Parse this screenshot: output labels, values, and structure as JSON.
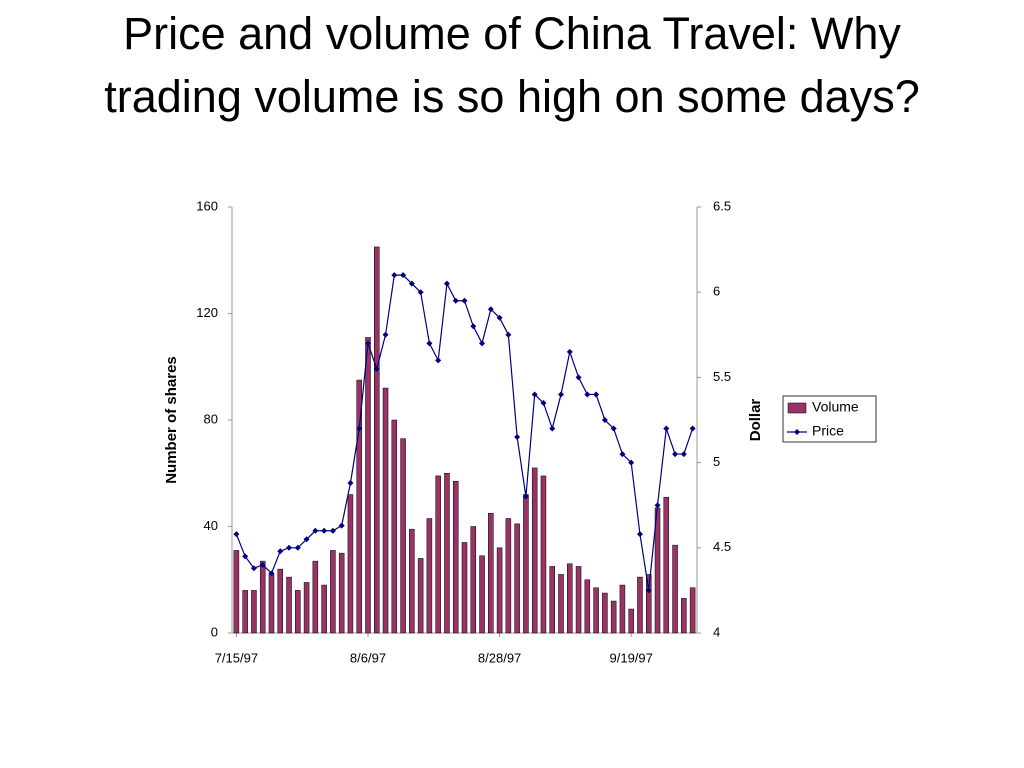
{
  "chart_data": {
    "type": "bar-line",
    "title": "Price and volume of China Travel: Why trading volume is so high on some days?",
    "y_label": "Number of shares",
    "y2_label": "Dollar",
    "categories": [
      "7/15/97",
      null,
      null,
      null,
      null,
      null,
      null,
      null,
      null,
      null,
      null,
      null,
      null,
      null,
      null,
      "8/6/97",
      null,
      null,
      null,
      null,
      null,
      null,
      null,
      null,
      null,
      null,
      null,
      null,
      null,
      null,
      "8/28/97",
      null,
      null,
      null,
      null,
      null,
      null,
      null,
      null,
      null,
      null,
      null,
      null,
      null,
      null,
      "9/19/97",
      null,
      null,
      null,
      null,
      null,
      null,
      null
    ],
    "series": [
      {
        "name": "Volume",
        "type": "bar",
        "color": "#993366",
        "values": [
          31,
          16,
          16,
          27,
          22,
          24,
          21,
          16,
          19,
          27,
          18,
          31,
          30,
          52,
          95,
          111,
          145,
          92,
          80,
          73,
          39,
          28,
          43,
          59,
          60,
          57,
          34,
          40,
          29,
          45,
          32,
          43,
          41,
          52,
          62,
          59,
          25,
          22,
          26,
          25,
          20,
          17,
          15,
          12,
          18,
          9,
          21,
          22,
          47,
          51,
          33,
          13,
          17
        ]
      },
      {
        "name": "Price",
        "type": "line",
        "axis": "y2",
        "color": "#000080",
        "values": [
          4.58,
          4.45,
          4.38,
          4.4,
          4.35,
          4.48,
          4.5,
          4.5,
          4.55,
          4.6,
          4.6,
          4.6,
          4.63,
          4.88,
          5.2,
          5.7,
          5.55,
          5.75,
          6.1,
          6.1,
          6.05,
          6.0,
          5.7,
          5.6,
          6.05,
          5.95,
          5.95,
          5.8,
          5.7,
          5.9,
          5.85,
          5.75,
          5.15,
          4.8,
          5.4,
          5.35,
          5.2,
          5.4,
          5.65,
          5.5,
          5.4,
          5.4,
          5.25,
          5.2,
          5.05,
          5.0,
          4.58,
          4.25,
          4.75,
          5.2,
          5.05,
          5.05,
          5.2
        ]
      }
    ],
    "ylim": [
      0,
      160
    ],
    "yticks": [
      0,
      40,
      80,
      120,
      160
    ],
    "y2lim": [
      4,
      6.5
    ],
    "y2ticks": [
      4,
      4.5,
      5,
      5.5,
      6,
      6.5
    ],
    "legend": "right"
  }
}
